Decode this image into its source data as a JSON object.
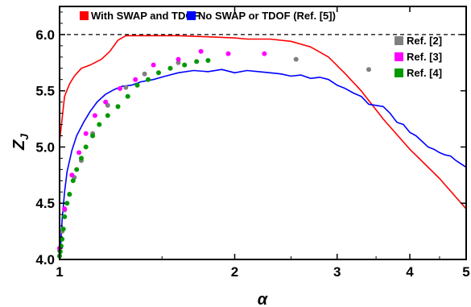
{
  "chart_data": {
    "type": "line",
    "title": "",
    "xlabel": "α",
    "ylabel": "Z",
    "ylabel_sub": "J",
    "x_scale": "log",
    "xlim": [
      1,
      5
    ],
    "ylim": [
      4.0,
      6.25
    ],
    "x_ticks": [
      1,
      2,
      3,
      4,
      5
    ],
    "x_tick_labels": [
      "1",
      "2",
      "3",
      "4",
      "5"
    ],
    "y_ticks": [
      4.0,
      4.5,
      5.0,
      5.5,
      6.0
    ],
    "y_tick_labels": [
      "4.0",
      "4.5",
      "5.0",
      "5.5",
      "6.0"
    ],
    "reference_line": {
      "y": 6.0,
      "style": "dashed",
      "color": "#000000"
    },
    "grid": false,
    "series": [
      {
        "name": "With SWAP and TDOF",
        "kind": "line",
        "color": "#ff0000",
        "x": [
          1.0,
          1.01,
          1.02,
          1.04,
          1.06,
          1.09,
          1.13,
          1.18,
          1.22,
          1.26,
          1.3,
          1.34,
          1.4,
          1.5,
          1.6,
          1.8,
          2.0,
          2.1,
          2.3,
          2.5,
          2.7,
          2.9,
          3.1,
          3.3,
          3.6,
          4.0,
          4.5,
          5.0
        ],
        "y": [
          5.05,
          5.25,
          5.45,
          5.56,
          5.63,
          5.7,
          5.73,
          5.78,
          5.85,
          5.95,
          5.99,
          5.99,
          5.99,
          5.99,
          5.99,
          5.98,
          5.97,
          5.96,
          5.96,
          5.94,
          5.89,
          5.8,
          5.65,
          5.5,
          5.25,
          4.98,
          4.72,
          4.45
        ]
      },
      {
        "name": "No SWAP or TDOF (Ref. [5])",
        "kind": "line",
        "color": "#0000ff",
        "x": [
          1.0,
          1.005,
          1.01,
          1.02,
          1.03,
          1.05,
          1.07,
          1.1,
          1.13,
          1.16,
          1.2,
          1.24,
          1.28,
          1.33,
          1.38,
          1.45,
          1.52,
          1.6,
          1.7,
          1.8,
          1.9,
          2.0,
          2.1,
          2.2,
          2.3,
          2.4,
          2.5,
          2.6,
          2.7,
          2.8,
          2.9,
          3.0,
          3.1,
          3.2,
          3.3,
          3.4,
          3.5,
          3.6,
          3.7,
          3.8,
          3.9,
          4.0,
          4.1,
          4.2,
          4.3,
          4.4,
          4.5,
          4.6,
          4.7,
          4.8,
          4.9,
          5.0
        ],
        "y": [
          4.02,
          4.15,
          4.35,
          4.6,
          4.78,
          4.97,
          5.1,
          5.22,
          5.32,
          5.4,
          5.47,
          5.51,
          5.54,
          5.55,
          5.58,
          5.6,
          5.63,
          5.66,
          5.68,
          5.67,
          5.69,
          5.66,
          5.68,
          5.67,
          5.66,
          5.65,
          5.63,
          5.64,
          5.61,
          5.62,
          5.6,
          5.55,
          5.52,
          5.48,
          5.45,
          5.38,
          5.37,
          5.36,
          5.3,
          5.22,
          5.2,
          5.13,
          5.1,
          5.05,
          5.0,
          4.98,
          4.95,
          4.93,
          4.92,
          4.88,
          4.85,
          4.82
        ]
      },
      {
        "name": "Ref. [2]",
        "kind": "scatter",
        "color": "#808080",
        "x": [
          1.0,
          1.01,
          1.02,
          1.04,
          1.06,
          1.09,
          1.14,
          1.21,
          1.3,
          1.4,
          1.6,
          2.55,
          3.4
        ],
        "y": [
          4.08,
          4.25,
          4.44,
          4.58,
          4.73,
          4.88,
          5.12,
          5.37,
          5.53,
          5.65,
          5.75,
          5.78,
          5.69
        ]
      },
      {
        "name": "Ref. [3]",
        "kind": "scatter",
        "color": "#ff00ff",
        "x": [
          1.0,
          1.02,
          1.05,
          1.08,
          1.11,
          1.15,
          1.2,
          1.27,
          1.35,
          1.45,
          1.6,
          1.75,
          1.95,
          2.25
        ],
        "y": [
          4.1,
          4.45,
          4.75,
          4.95,
          5.12,
          5.28,
          5.4,
          5.52,
          5.6,
          5.73,
          5.78,
          5.85,
          5.83,
          5.83
        ]
      },
      {
        "name": "Ref. [4]",
        "kind": "scatter",
        "color": "#009900",
        "x": [
          1.0,
          1.003,
          1.006,
          1.01,
          1.015,
          1.02,
          1.03,
          1.04,
          1.055,
          1.07,
          1.09,
          1.11,
          1.14,
          1.17,
          1.21,
          1.26,
          1.31,
          1.36,
          1.42,
          1.48,
          1.55,
          1.64,
          1.72,
          1.8
        ],
        "y": [
          4.03,
          4.07,
          4.12,
          4.18,
          4.27,
          4.38,
          4.5,
          4.58,
          4.7,
          4.8,
          4.9,
          5.0,
          5.1,
          5.2,
          5.28,
          5.36,
          5.45,
          5.55,
          5.6,
          5.66,
          5.7,
          5.73,
          5.76,
          5.77
        ]
      }
    ],
    "legend_top": [
      {
        "label": "With SWAP and TDOF",
        "color": "#ff0000"
      },
      {
        "label": "No SWAP or TDOF (Ref. [5])",
        "color": "#0000ff"
      }
    ],
    "legend_right": [
      {
        "label": "Ref. [2]",
        "color": "#808080"
      },
      {
        "label": "Ref. [3]",
        "color": "#ff00ff"
      },
      {
        "label": "Ref. [4]",
        "color": "#009900"
      }
    ],
    "legend_placement": [
      "top",
      "top-right"
    ]
  }
}
